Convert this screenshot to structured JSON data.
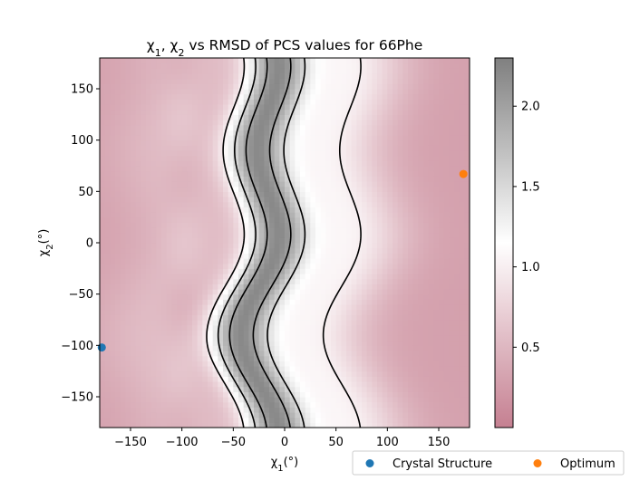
{
  "chart_data": {
    "type": "heatmap",
    "title": {
      "prefix": "χ",
      "sub1": "1",
      "comma": ", χ",
      "sub2": "2",
      "suffix": " vs RMSD of PCS values for 66Phe"
    },
    "xlabel": {
      "prefix": "χ",
      "sub": "1",
      "suffix": "(°)"
    },
    "ylabel": {
      "prefix": "χ",
      "sub": "2",
      "suffix": "(°)"
    },
    "xlim": [
      -180,
      180
    ],
    "ylim": [
      -180,
      180
    ],
    "x_ticks": [
      -150,
      -100,
      -50,
      0,
      50,
      100,
      150
    ],
    "x_tick_labels": [
      "−150",
      "−100",
      "−50",
      "0",
      "50",
      "100",
      "150"
    ],
    "y_ticks": [
      -150,
      -100,
      -50,
      0,
      50,
      100,
      150
    ],
    "y_tick_labels": [
      "−150",
      "−100",
      "−50",
      "0",
      "50",
      "100",
      "150"
    ],
    "colorbar": {
      "vmin": 0.0,
      "vmax": 2.3,
      "ticks": [
        0.5,
        1.0,
        1.5,
        2.0
      ],
      "tick_labels": [
        "0.5",
        "1.0",
        "1.5",
        "2.0"
      ],
      "colormap": [
        "#8b0022",
        "#ffffff",
        "#000000"
      ],
      "midpoint": 1.15,
      "alpha": 0.5
    },
    "contour_levels": [
      1.0,
      1.5,
      2.0
    ],
    "contour_color": "#000000",
    "background_level_edge": 0.3,
    "points": [
      {
        "name": "Crystal Structure",
        "x": -178,
        "y": -102,
        "color": "#1f77b4"
      },
      {
        "name": "Optimum",
        "x": 174,
        "y": 67,
        "color": "#ff7f0e"
      }
    ],
    "legend_position": "lower-right-outside"
  }
}
